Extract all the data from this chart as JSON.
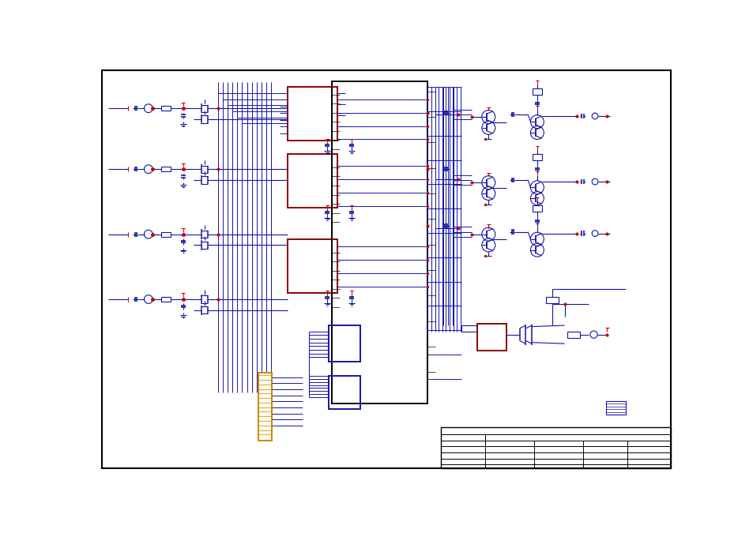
{
  "bg_color": "#ffffff",
  "border_color": "#000000",
  "blue": "#1414aa",
  "red": "#cc0000",
  "dark_red": "#8b0000",
  "orange": "#cc8800",
  "fig_width": 9.54,
  "fig_height": 6.75,
  "dpi": 100
}
